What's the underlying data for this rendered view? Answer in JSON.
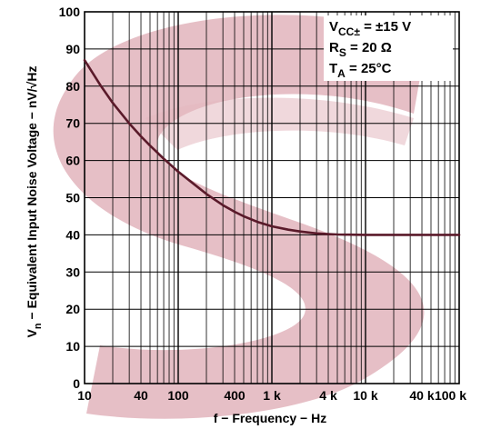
{
  "chart_data": {
    "type": "line",
    "xscale": "log",
    "xlim": [
      10,
      100000
    ],
    "ylim": [
      0,
      100
    ],
    "grid": true,
    "xlabel": "f − Frequency − Hz",
    "ylabel_parts": {
      "prefix": "V",
      "sub": "n",
      "text": " − Equivalent Input Noise Voltage − nV/√Hz"
    },
    "x_ticks": [
      {
        "value": 10,
        "label": "10"
      },
      {
        "value": 40,
        "label": "40"
      },
      {
        "value": 100,
        "label": "100"
      },
      {
        "value": 400,
        "label": "400"
      },
      {
        "value": 1000,
        "label": "1 k"
      },
      {
        "value": 4000,
        "label": "4 k"
      },
      {
        "value": 10000,
        "label": "10 k"
      },
      {
        "value": 40000,
        "label": "40 k"
      },
      {
        "value": 100000,
        "label": "100 k"
      }
    ],
    "y_ticks": [
      0,
      10,
      20,
      30,
      40,
      50,
      60,
      70,
      80,
      90,
      100
    ],
    "conditions": [
      {
        "main": "V",
        "sub": "CC±",
        "rest": " = ±15 V"
      },
      {
        "main": "R",
        "sub": "S",
        "rest": " = 20 Ω"
      },
      {
        "main": "T",
        "sub": "A",
        "rest": " = 25°C"
      }
    ],
    "series": [
      {
        "color": "#5a1a2a",
        "x": [
          10,
          15,
          20,
          30,
          40,
          50,
          70,
          100,
          150,
          200,
          300,
          400,
          500,
          700,
          1000,
          1500,
          2000,
          3000,
          4000,
          5000,
          7000,
          10000,
          20000,
          40000,
          100000
        ],
        "y": [
          87,
          80,
          75.5,
          70,
          66.5,
          64,
          60.5,
          57,
          53.5,
          51,
          48,
          46.2,
          45,
          43.5,
          42.3,
          41.4,
          40.9,
          40.4,
          40.2,
          40.1,
          40.05,
          40,
          40,
          40,
          40
        ]
      }
    ]
  },
  "watermark": {
    "color": "#e3b8c0"
  }
}
